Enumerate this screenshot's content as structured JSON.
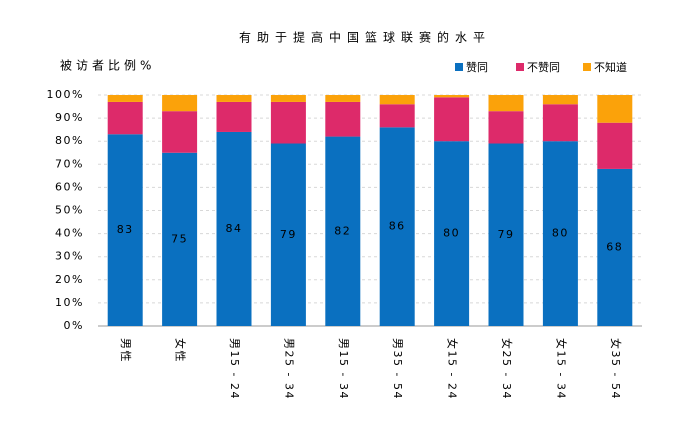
{
  "chart_data": {
    "type": "stacked_bar",
    "title": "有助于提高中国篮球联赛的水平",
    "y_label": "被访者比例%",
    "categories": [
      "男性",
      "女性",
      "男15 - 24",
      "男25 - 34",
      "男15 - 34",
      "男35 - 54",
      "女15 - 24",
      "女25 - 34",
      "女15 - 34",
      "女35 - 54"
    ],
    "series": [
      {
        "name": "赞同",
        "color": "#0a70c0",
        "values": [
          83,
          75,
          84,
          79,
          82,
          86,
          80,
          79,
          80,
          68
        ]
      },
      {
        "name": "不赞同",
        "color": "#dd2a6a",
        "values": [
          14,
          18,
          13,
          18,
          15,
          10,
          19,
          14,
          16,
          20
        ]
      },
      {
        "name": "不知道",
        "color": "#fba20a",
        "values": [
          3,
          7,
          3,
          3,
          3,
          4,
          1,
          7,
          4,
          12
        ]
      }
    ],
    "ylim": [
      0,
      100
    ],
    "yticks": [
      {
        "value": 0,
        "label": "0%"
      },
      {
        "value": 10,
        "label": "10%"
      },
      {
        "value": 20,
        "label": "20%"
      },
      {
        "value": 30,
        "label": "30%"
      },
      {
        "value": 40,
        "label": "40%"
      },
      {
        "value": 50,
        "label": "50%"
      },
      {
        "value": 60,
        "label": "60%"
      },
      {
        "value": 70,
        "label": "70%"
      },
      {
        "value": 80,
        "label": "80%"
      },
      {
        "value": 90,
        "label": "90%"
      },
      {
        "value": 100,
        "label": "100%"
      }
    ],
    "grid": true,
    "legend": "top-right"
  }
}
